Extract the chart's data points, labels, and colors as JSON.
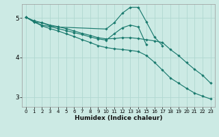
{
  "xlabel": "Humidex (Indice chaleur)",
  "bg_color": "#cceae4",
  "grid_color": "#b0d8d0",
  "line_color": "#1a7a6e",
  "xlim": [
    -0.5,
    23.5
  ],
  "ylim": [
    2.75,
    5.35
  ],
  "yticks": [
    3,
    4,
    5
  ],
  "xticks": [
    0,
    1,
    2,
    3,
    4,
    5,
    6,
    7,
    8,
    9,
    10,
    11,
    12,
    13,
    14,
    15,
    16,
    17,
    18,
    19,
    20,
    21,
    22,
    23
  ],
  "lines": [
    {
      "x": [
        0,
        1,
        2,
        3,
        4,
        10,
        11,
        12,
        13,
        14,
        15,
        16,
        17
      ],
      "y": [
        5.02,
        4.9,
        4.88,
        4.8,
        4.77,
        4.72,
        4.88,
        5.12,
        5.27,
        5.27,
        4.9,
        4.52,
        4.3
      ]
    },
    {
      "x": [
        0,
        1,
        2,
        3,
        4,
        5,
        6,
        7,
        8,
        9,
        10,
        11,
        12,
        13,
        14,
        15
      ],
      "y": [
        5.02,
        4.9,
        4.82,
        4.78,
        4.73,
        4.68,
        4.63,
        4.58,
        4.52,
        4.47,
        4.44,
        4.6,
        4.75,
        4.82,
        4.77,
        4.32
      ]
    },
    {
      "x": [
        0,
        1,
        2,
        3,
        4,
        5,
        6,
        7,
        8,
        9,
        10,
        11,
        12,
        13,
        14,
        15,
        16,
        17,
        18,
        19,
        20,
        21,
        22,
        23
      ],
      "y": [
        5.02,
        4.93,
        4.88,
        4.82,
        4.78,
        4.73,
        4.67,
        4.61,
        4.56,
        4.5,
        4.47,
        4.48,
        4.5,
        4.5,
        4.48,
        4.45,
        4.42,
        4.38,
        4.2,
        4.05,
        3.87,
        3.7,
        3.55,
        3.35
      ]
    },
    {
      "x": [
        0,
        1,
        2,
        3,
        4,
        5,
        6,
        7,
        8,
        9,
        10,
        11,
        12,
        13,
        14,
        15,
        16,
        17,
        18,
        19,
        20,
        21,
        22,
        23
      ],
      "y": [
        5.02,
        4.9,
        4.8,
        4.73,
        4.67,
        4.6,
        4.53,
        4.45,
        4.38,
        4.3,
        4.25,
        4.22,
        4.2,
        4.18,
        4.15,
        4.05,
        3.88,
        3.68,
        3.48,
        3.35,
        3.22,
        3.1,
        3.02,
        2.95
      ]
    }
  ]
}
